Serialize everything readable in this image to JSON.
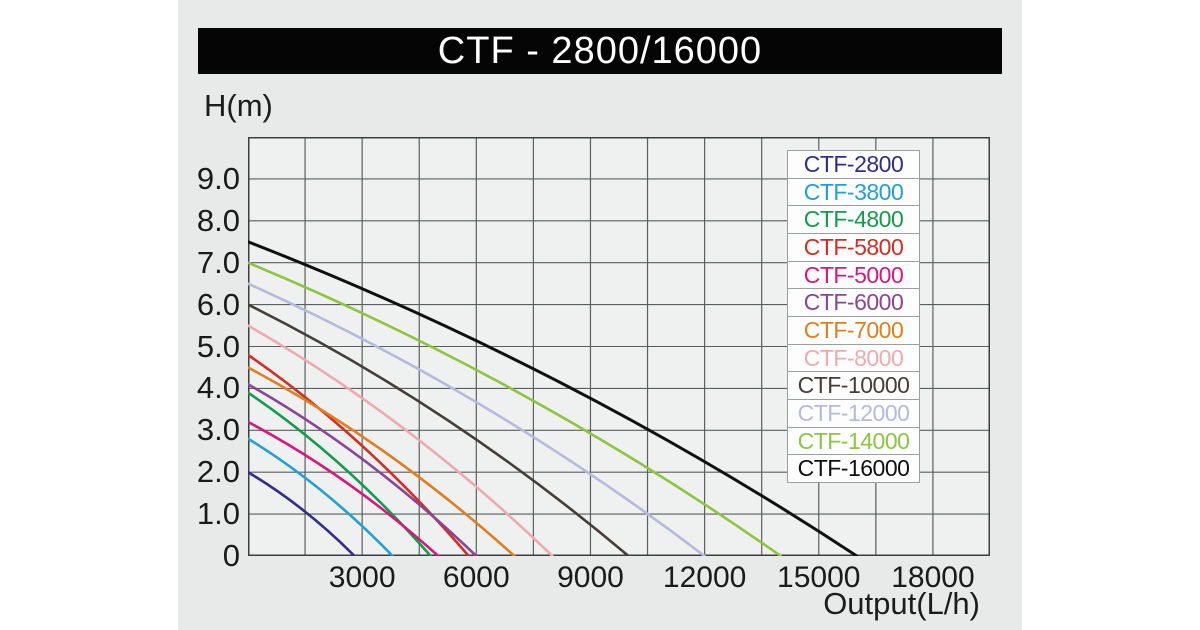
{
  "title": "CTF - 2800/16000",
  "chart_data": {
    "type": "line",
    "title": "CTF - 2800/16000",
    "xlabel": "Output(L/h)",
    "ylabel": "H(m)",
    "xlim": [
      0,
      19500
    ],
    "ylim": [
      0,
      10
    ],
    "x_ticks": [
      3000,
      6000,
      9000,
      12000,
      15000,
      18000
    ],
    "x_tick_labels": [
      "3000",
      "6000",
      "9000",
      "12000",
      "15000",
      "18000"
    ],
    "x_grid_step": 1500,
    "y_ticks": [
      0,
      1,
      2,
      3,
      4,
      5,
      6,
      7,
      8,
      9
    ],
    "y_tick_labels": [
      "0",
      "1.0",
      "2.0",
      "3.0",
      "4.0",
      "5.0",
      "6.0",
      "7.0",
      "8.0",
      "9.0"
    ],
    "y_grid_step": 1,
    "grid": true,
    "legend_position": "overlay-upper-right",
    "series": [
      {
        "name": "CTF-2800",
        "color": "#322c8c",
        "max_head_m": 2.0,
        "max_flow_lh": 2800,
        "points": [
          [
            0,
            2.0
          ],
          [
            1400,
            1.1
          ],
          [
            2800,
            0
          ]
        ]
      },
      {
        "name": "CTF-3800",
        "color": "#219fdb",
        "max_head_m": 2.8,
        "max_flow_lh": 3800,
        "points": [
          [
            0,
            2.8
          ],
          [
            1900,
            1.6
          ],
          [
            3800,
            0
          ]
        ]
      },
      {
        "name": "CTF-4800",
        "color": "#119c4b",
        "max_head_m": 3.9,
        "max_flow_lh": 4800,
        "points": [
          [
            0,
            3.9
          ],
          [
            2400,
            2.2
          ],
          [
            4800,
            0
          ]
        ]
      },
      {
        "name": "CTF-5800",
        "color": "#d32d24",
        "max_head_m": 4.8,
        "max_flow_lh": 5800,
        "points": [
          [
            0,
            4.8
          ],
          [
            2900,
            2.7
          ],
          [
            5800,
            0
          ]
        ]
      },
      {
        "name": "CTF-5000",
        "color": "#d6187d",
        "max_head_m": 3.2,
        "max_flow_lh": 5000,
        "points": [
          [
            0,
            3.2
          ],
          [
            2500,
            1.8
          ],
          [
            5000,
            0
          ]
        ]
      },
      {
        "name": "CTF-6000",
        "color": "#8c4494",
        "max_head_m": 4.1,
        "max_flow_lh": 6000,
        "points": [
          [
            0,
            4.1
          ],
          [
            3000,
            2.3
          ],
          [
            6000,
            0
          ]
        ]
      },
      {
        "name": "CTF-7000",
        "color": "#e07e1e",
        "max_head_m": 4.5,
        "max_flow_lh": 7000,
        "points": [
          [
            0,
            4.5
          ],
          [
            3500,
            2.5
          ],
          [
            7000,
            0
          ]
        ]
      },
      {
        "name": "CTF-8000",
        "color": "#edaab0",
        "max_head_m": 5.5,
        "max_flow_lh": 8000,
        "points": [
          [
            0,
            5.5
          ],
          [
            4000,
            3.1
          ],
          [
            8000,
            0
          ]
        ]
      },
      {
        "name": "CTF-10000",
        "color": "#443e3a",
        "max_head_m": 6.0,
        "max_flow_lh": 10000,
        "points": [
          [
            0,
            6.0
          ],
          [
            5000,
            3.4
          ],
          [
            10000,
            0
          ]
        ]
      },
      {
        "name": "CTF-12000",
        "color": "#b5badd",
        "max_head_m": 6.5,
        "max_flow_lh": 12000,
        "points": [
          [
            0,
            6.5
          ],
          [
            6000,
            3.6
          ],
          [
            12000,
            0
          ]
        ]
      },
      {
        "name": "CTF-14000",
        "color": "#8cc63f",
        "max_head_m": 7.0,
        "max_flow_lh": 14000,
        "points": [
          [
            0,
            7.0
          ],
          [
            7000,
            3.9
          ],
          [
            14000,
            0
          ]
        ]
      },
      {
        "name": "CTF-16000",
        "color": "#101010",
        "max_head_m": 7.5,
        "max_flow_lh": 16000,
        "points": [
          [
            0,
            7.5
          ],
          [
            8000,
            4.2
          ],
          [
            16000,
            0
          ]
        ]
      }
    ]
  },
  "colors": {
    "page_background": "#ffffff",
    "panel_background": "#e7eae9",
    "title_bar_background": "#050505",
    "title_text": "#ffffff",
    "plot_background": "#eef1f0",
    "grid_line": "#5a5f5d",
    "plot_border": "#3a3f3d",
    "axis_text": "#1a1a1a",
    "legend_background": "#fdfdfd",
    "legend_border": "#9b9f9e"
  }
}
